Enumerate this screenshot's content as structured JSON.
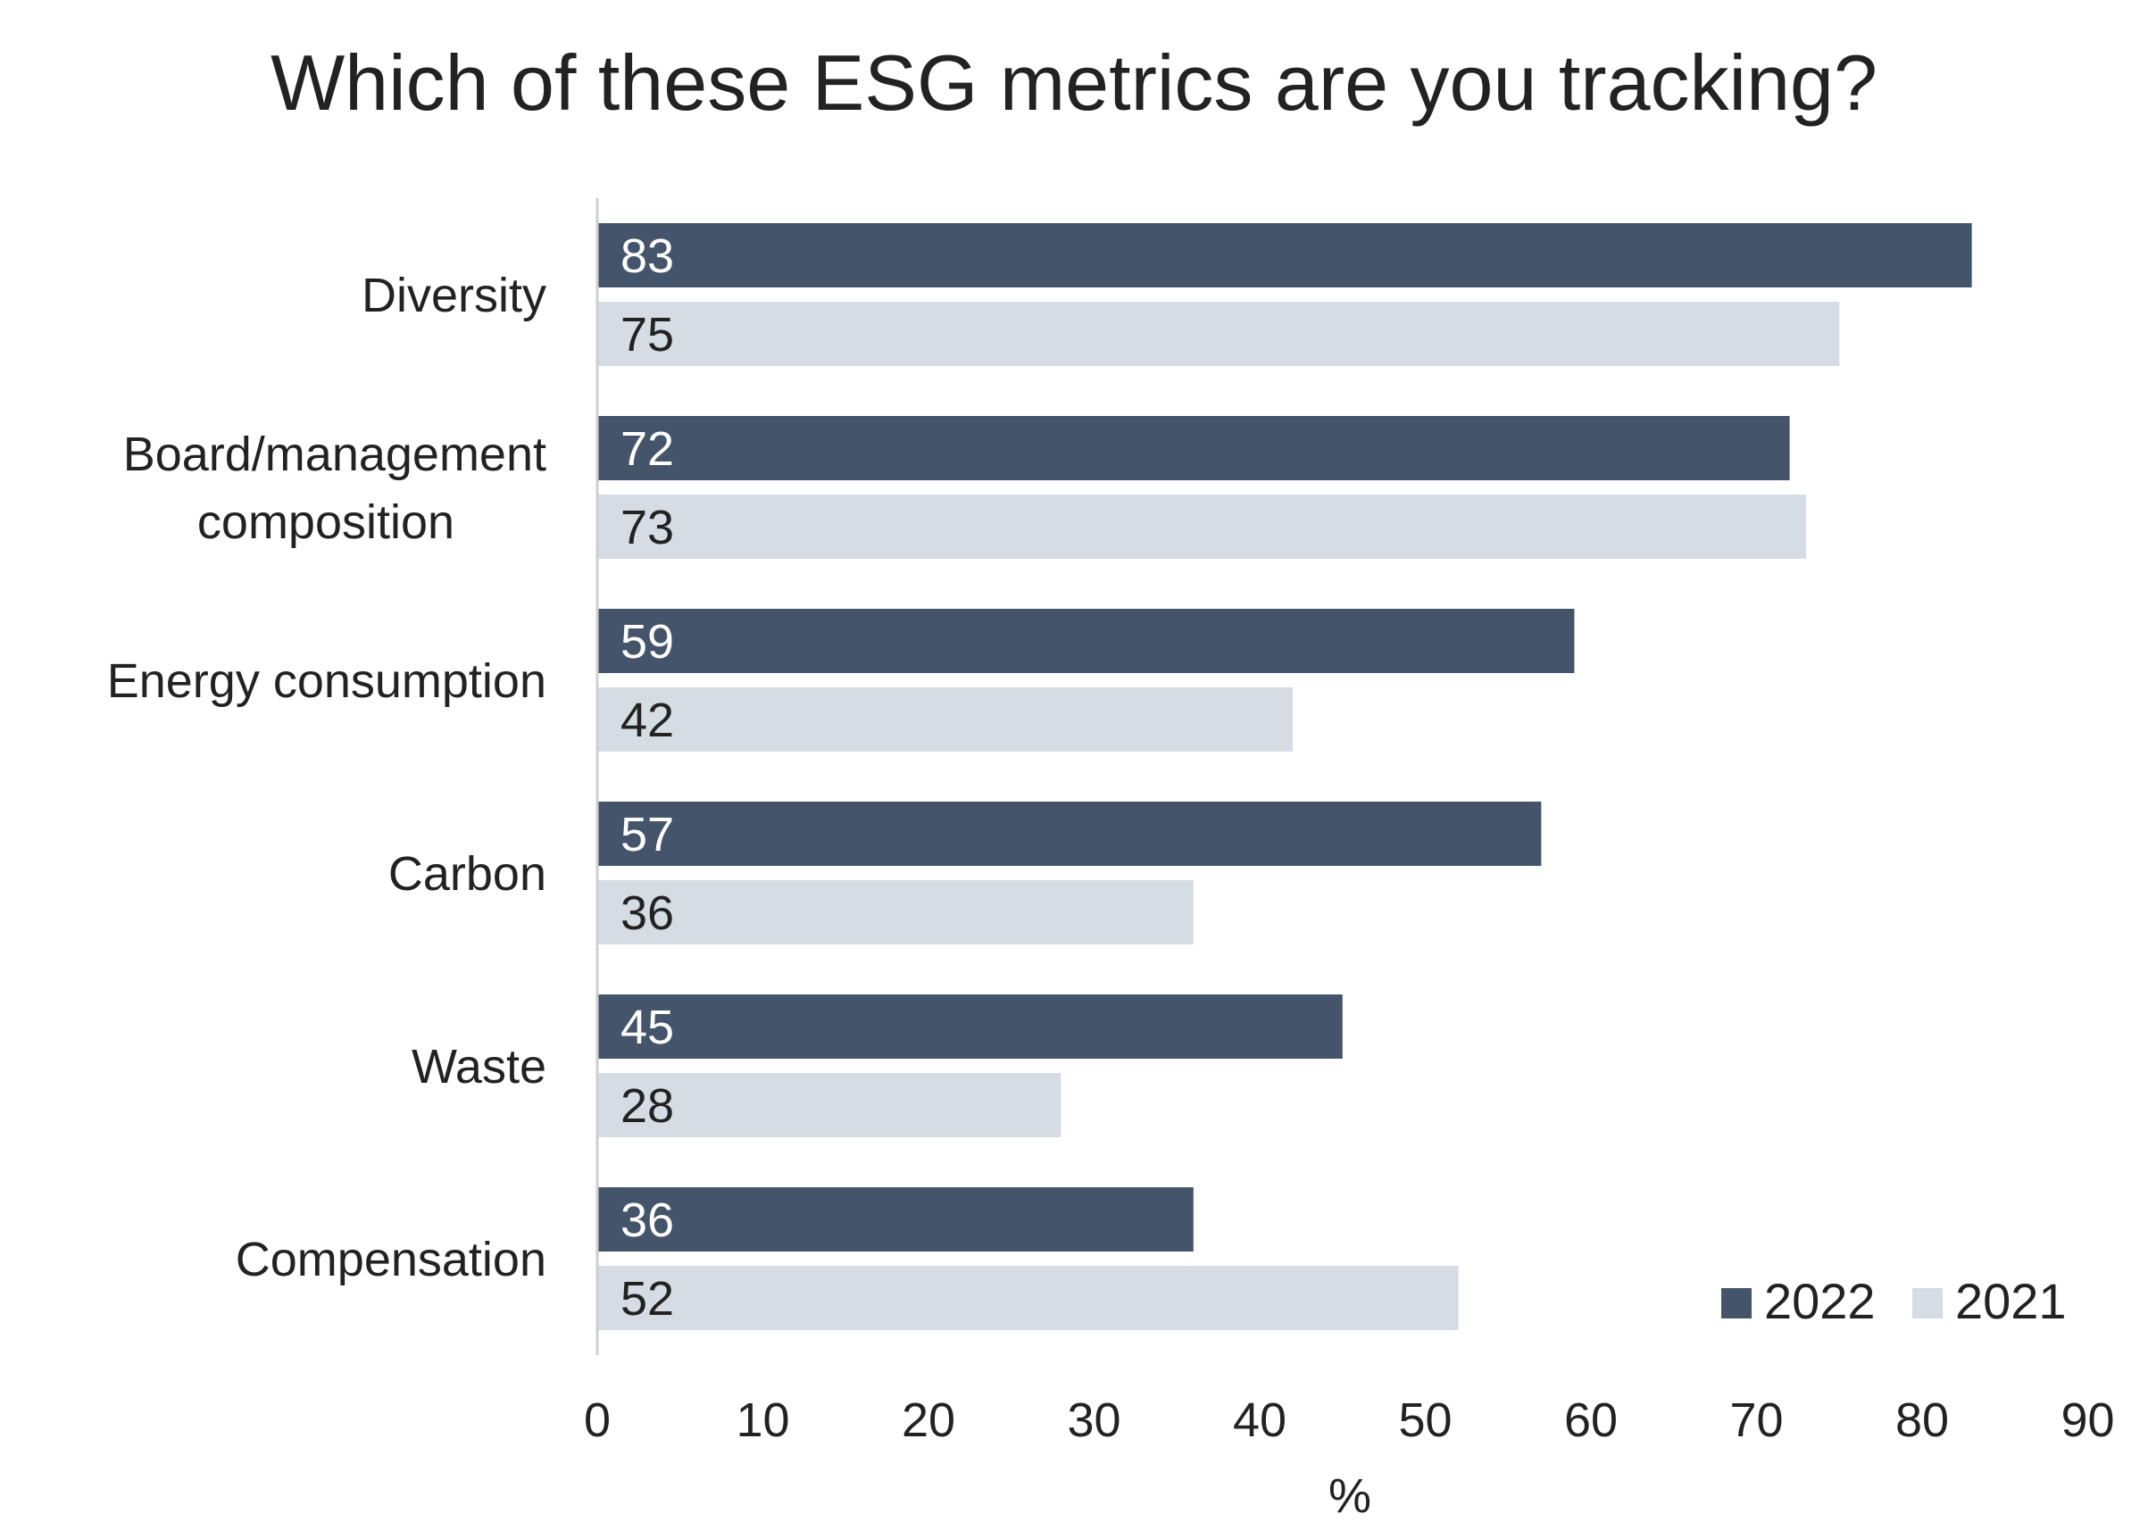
{
  "chart_data": {
    "type": "bar",
    "orientation": "horizontal",
    "title": "Which of these ESG metrics are you tracking?",
    "xlabel": "%",
    "ylabel": "",
    "categories": [
      [
        "Diversity"
      ],
      [
        "Board/management",
        "composition"
      ],
      [
        "Energy consumption"
      ],
      [
        "Carbon"
      ],
      [
        "Waste"
      ],
      [
        "Compensation"
      ]
    ],
    "series": [
      {
        "name": "2022",
        "color": "#44546a",
        "label_color": "#ffffff",
        "values": [
          83,
          72,
          59,
          57,
          45,
          36
        ]
      },
      {
        "name": "2021",
        "color": "#d6dce4",
        "label_color": "#222222",
        "values": [
          75,
          73,
          42,
          36,
          28,
          52
        ]
      }
    ],
    "xlim": [
      0,
      90
    ],
    "xticks": [
      0,
      10,
      20,
      30,
      40,
      50,
      60,
      70,
      80,
      90
    ],
    "grid": false,
    "legend_position": "bottom-right",
    "data_labels": true
  }
}
